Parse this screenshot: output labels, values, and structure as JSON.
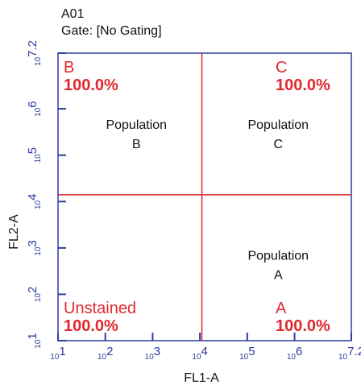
{
  "chart_data": {
    "type": "quadrant",
    "title": "A01",
    "subtitle": "Gate: [No Gating]",
    "x_label": "FL1-A",
    "y_label": "FL2-A",
    "log_x": true,
    "log_y": true,
    "xlim": [
      10,
      15848932
    ],
    "ylim": [
      10,
      15848932
    ],
    "xticks": [
      {
        "value": 10,
        "label": "10",
        "power": "1"
      },
      {
        "value": 100,
        "label": "10",
        "power": "2"
      },
      {
        "value": 1000,
        "label": "10",
        "power": "3"
      },
      {
        "value": 10000,
        "label": "10",
        "power": "4"
      },
      {
        "value": 100000,
        "label": "10",
        "power": "5"
      },
      {
        "value": 1000000,
        "label": "10",
        "power": "6"
      },
      {
        "value": 15848932,
        "label": "10",
        "power": "7.2"
      }
    ],
    "yticks": [
      {
        "value": 10,
        "label": "10",
        "power": "1"
      },
      {
        "value": 100,
        "label": "10",
        "power": "2"
      },
      {
        "value": 1000,
        "label": "10",
        "power": "3"
      },
      {
        "value": 10000,
        "label": "10",
        "power": "4"
      },
      {
        "value": 100000,
        "label": "10",
        "power": "5"
      },
      {
        "value": 1000000,
        "label": "10",
        "power": "6"
      },
      {
        "value": 15848932,
        "label": "10",
        "power": "7.2"
      }
    ],
    "x_threshold": 11000,
    "y_threshold": 14000,
    "line_color": "#e0282e",
    "axis_color": "#2b3d9c",
    "quadrants": [
      {
        "corner": "top-left",
        "name": "B",
        "percent": 100.0,
        "percent_label": "100.0%",
        "population": [
          "Population",
          "B"
        ]
      },
      {
        "corner": "top-right",
        "name": "C",
        "percent": 100.0,
        "percent_label": "100.0%",
        "population": [
          "Population",
          "C"
        ]
      },
      {
        "corner": "bottom-left",
        "name": "Unstained",
        "percent": 100.0,
        "percent_label": "100.0%",
        "population": []
      },
      {
        "corner": "bottom-right",
        "name": "A",
        "percent": 100.0,
        "percent_label": "100.0%",
        "population": [
          "Population",
          "A"
        ]
      }
    ]
  }
}
